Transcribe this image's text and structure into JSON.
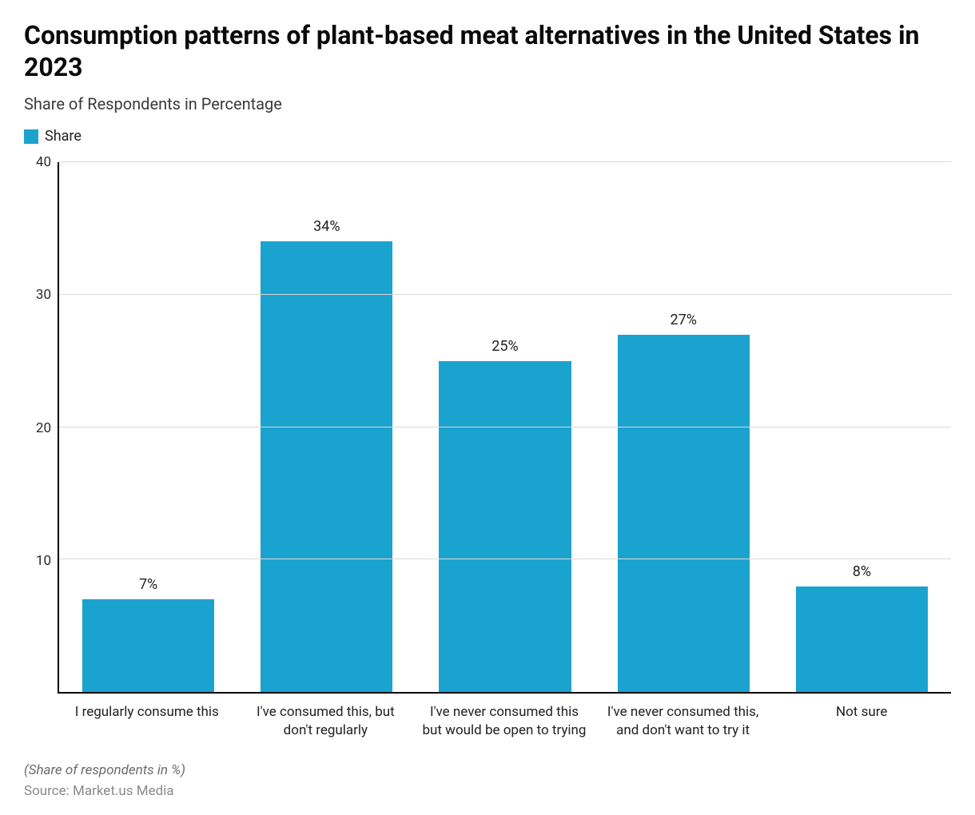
{
  "chart": {
    "type": "bar",
    "title": "Consumption patterns of plant-based meat alternatives in the United States in 2023",
    "subtitle": "Share of Respondents in Percentage",
    "legend": {
      "label": "Share",
      "swatch_color": "#1ba3cf"
    },
    "categories": [
      "I regularly consume this",
      "I've consumed this, but don't regularly",
      "I've never consumed this but would be open to trying",
      "I've never consumed this, and don't want to try it",
      "Not sure"
    ],
    "values": [
      7,
      34,
      25,
      27,
      8
    ],
    "value_labels": [
      "7%",
      "34%",
      "25%",
      "27%",
      "8%"
    ],
    "bar_color": "#1ba3cf",
    "ylim": [
      0,
      40
    ],
    "yticks": [
      0,
      10,
      20,
      30,
      40
    ],
    "ytick_labels": [
      "",
      "10",
      "20",
      "30",
      "40"
    ],
    "grid_color": "#d9d9d9",
    "axis_color": "#000000",
    "background_color": "#ffffff",
    "title_fontsize": 32,
    "subtitle_fontsize": 20,
    "tick_fontsize": 17,
    "value_label_fontsize": 18,
    "bar_width_ratio": 0.74,
    "footnote": "(Share of respondents in %)",
    "source": "Source: Market.us Media"
  }
}
